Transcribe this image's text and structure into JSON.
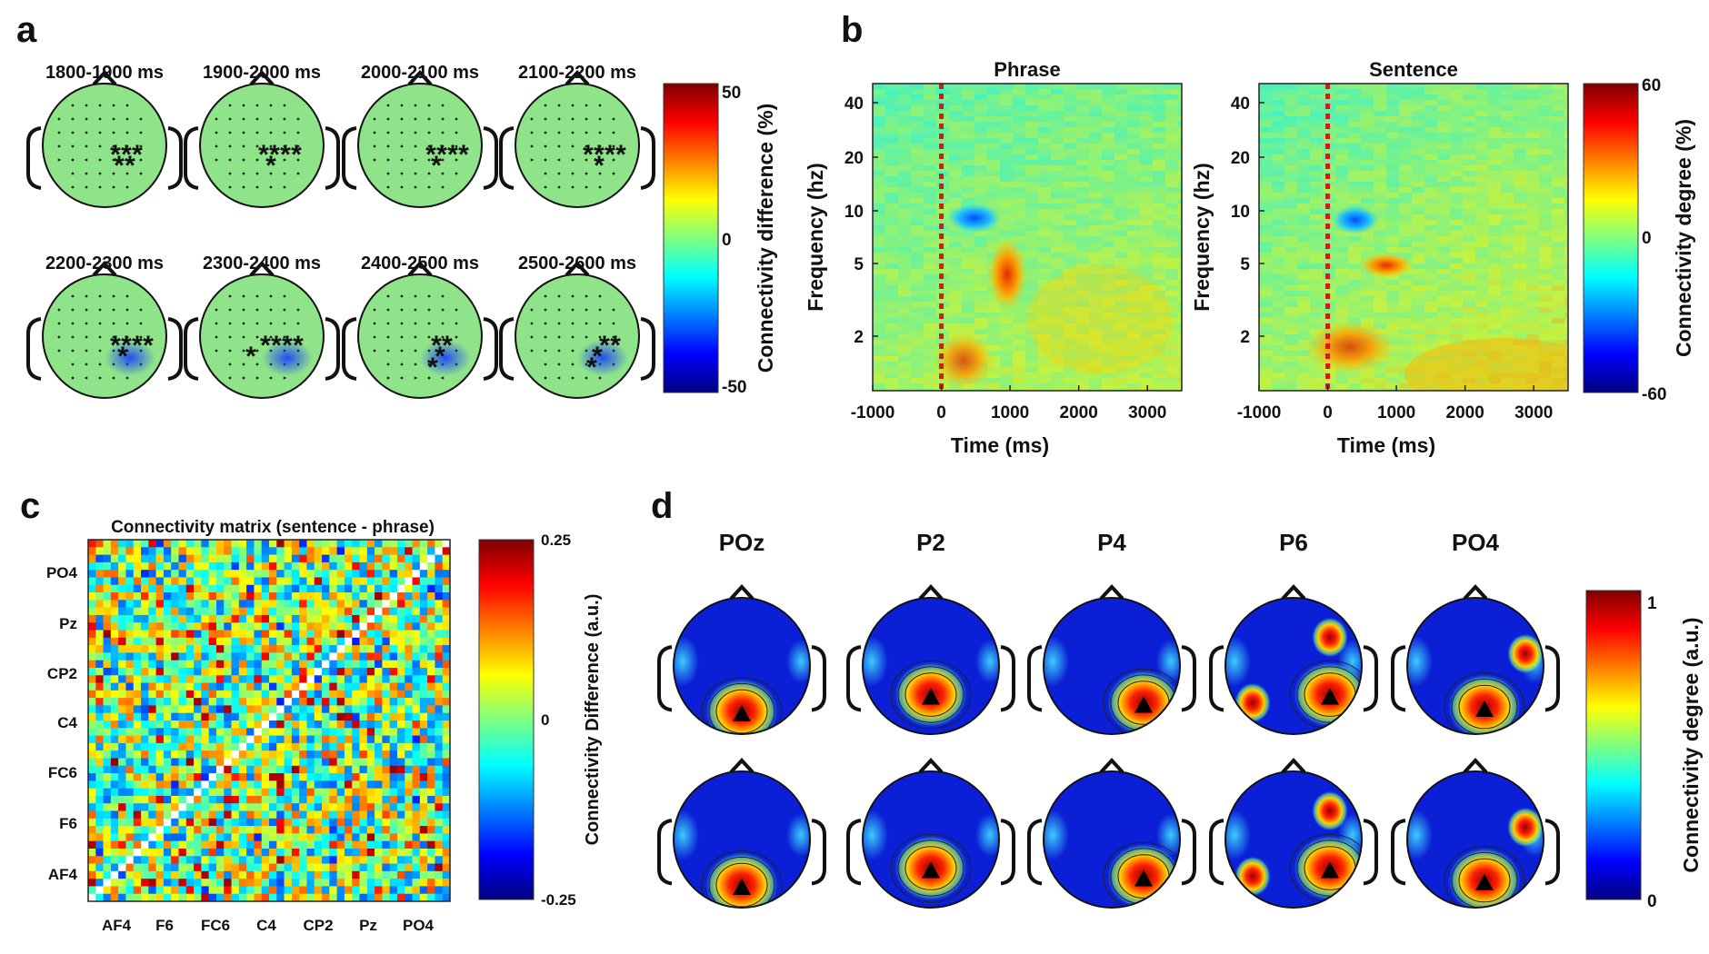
{
  "panels": {
    "a": {
      "label": "a",
      "time_windows": [
        "1800-1900 ms",
        "1900-2000 ms",
        "2000-2100 ms",
        "2100-2200 ms",
        "2200-2300 ms",
        "2300-2400 ms",
        "2400-2500 ms",
        "2500-2600 ms"
      ],
      "significant_electrode_counts": [
        5,
        5,
        5,
        5,
        5,
        5,
        4,
        4
      ],
      "colorbar": {
        "label": "Connectivity difference (%)",
        "ticks": [
          "50",
          "0",
          "-50"
        ]
      }
    },
    "b": {
      "label": "b",
      "maps": [
        {
          "title": "Phrase"
        },
        {
          "title": "Sentence"
        }
      ],
      "x_ticks": [
        "-1000",
        "0",
        "1000",
        "2000",
        "3000"
      ],
      "y_ticks": [
        "40",
        "20",
        "10",
        "5",
        "2"
      ],
      "xlabel": "Time (ms)",
      "ylabel": "Frequency (hz)",
      "colorbar": {
        "label": "Connectivity degree (%)",
        "ticks": [
          "60",
          "0",
          "-60"
        ]
      }
    },
    "c": {
      "label": "c",
      "title": "Connectivity matrix (sentence - phrase)",
      "row_labels": [
        "PO4",
        "Pz",
        "CP2",
        "C4",
        "FC6",
        "F6",
        "AF4"
      ],
      "col_labels": [
        "AF4",
        "F6",
        "FC6",
        "C4",
        "CP2",
        "Pz",
        "PO4"
      ],
      "colorbar": {
        "label": "Connectivity Difference (a.u.)",
        "ticks": [
          "0.25",
          "0",
          "-0.25"
        ]
      }
    },
    "d": {
      "label": "d",
      "electrodes": [
        "POz",
        "P2",
        "P4",
        "P6",
        "PO4"
      ],
      "colorbar": {
        "label": "Connectivity degree (a.u.)",
        "ticks": [
          "1",
          "0"
        ]
      }
    }
  },
  "colors": {
    "jet": [
      "#00007f",
      "#0000ff",
      "#007fff",
      "#00ffff",
      "#7fff7f",
      "#ffff00",
      "#ff7f00",
      "#ff0000",
      "#7f0000"
    ],
    "marker": "#c0161b"
  }
}
